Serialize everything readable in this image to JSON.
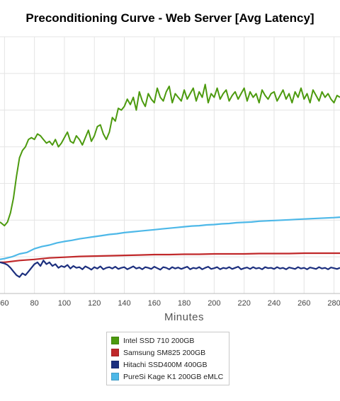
{
  "chart_data": {
    "type": "line",
    "title": "Preconditioning Curve - Web Server [Avg Latency]",
    "xlabel": "Minutes",
    "ylabel": "",
    "x_ticks": [
      60,
      80,
      100,
      120,
      140,
      160,
      180,
      200,
      220,
      240,
      260,
      280
    ],
    "xlim": [
      57,
      284
    ],
    "ylim": [
      0,
      7
    ],
    "grid": true,
    "legend_position": "bottom",
    "series": [
      {
        "name": "Intel SSD 710 200GB",
        "color": "#4c9a0e",
        "x": [
          57,
          60,
          62,
          64,
          66,
          68,
          70,
          72,
          74,
          76,
          78,
          80,
          82,
          84,
          86,
          88,
          90,
          92,
          94,
          96,
          98,
          100,
          102,
          104,
          106,
          108,
          110,
          112,
          114,
          116,
          118,
          120,
          122,
          124,
          126,
          128,
          130,
          132,
          134,
          136,
          138,
          140,
          142,
          144,
          146,
          148,
          150,
          152,
          154,
          156,
          158,
          160,
          162,
          164,
          166,
          168,
          170,
          172,
          174,
          176,
          178,
          180,
          182,
          184,
          186,
          188,
          190,
          192,
          194,
          196,
          198,
          200,
          202,
          204,
          206,
          208,
          210,
          212,
          214,
          216,
          218,
          220,
          222,
          224,
          226,
          228,
          230,
          232,
          234,
          236,
          238,
          240,
          242,
          244,
          246,
          248,
          250,
          252,
          254,
          256,
          258,
          260,
          262,
          264,
          266,
          268,
          270,
          272,
          274,
          276,
          278,
          280,
          282,
          284
        ],
        "values": [
          1.95,
          1.85,
          1.95,
          2.2,
          2.6,
          3.2,
          3.7,
          3.9,
          4.0,
          4.2,
          4.25,
          4.2,
          4.35,
          4.3,
          4.2,
          4.1,
          4.15,
          4.05,
          4.2,
          4.0,
          4.1,
          4.25,
          4.4,
          4.15,
          4.1,
          4.3,
          4.2,
          4.05,
          4.25,
          4.45,
          4.15,
          4.3,
          4.55,
          4.6,
          4.35,
          4.2,
          4.4,
          4.8,
          4.7,
          5.05,
          5.0,
          5.1,
          5.3,
          5.15,
          5.35,
          5.0,
          5.5,
          5.25,
          5.1,
          5.45,
          5.3,
          5.2,
          5.6,
          5.35,
          5.25,
          5.5,
          5.65,
          5.2,
          5.45,
          5.35,
          5.25,
          5.55,
          5.3,
          5.45,
          5.6,
          5.25,
          5.5,
          5.35,
          5.7,
          5.2,
          5.45,
          5.35,
          5.6,
          5.3,
          5.45,
          5.55,
          5.25,
          5.4,
          5.5,
          5.3,
          5.45,
          5.6,
          5.25,
          5.5,
          5.35,
          5.45,
          5.2,
          5.55,
          5.4,
          5.3,
          5.45,
          5.5,
          5.25,
          5.4,
          5.55,
          5.3,
          5.45,
          5.2,
          5.5,
          5.35,
          5.6,
          5.3,
          5.45,
          5.2,
          5.55,
          5.4,
          5.25,
          5.5,
          5.35,
          5.45,
          5.3,
          5.2,
          5.4,
          5.35
        ]
      },
      {
        "name": "Samsung SM825 200GB",
        "color": "#c0282a",
        "x": [
          57,
          60,
          70,
          80,
          90,
          100,
          110,
          120,
          130,
          140,
          150,
          160,
          170,
          180,
          190,
          200,
          210,
          220,
          230,
          240,
          250,
          260,
          270,
          284
        ],
        "values": [
          0.85,
          0.85,
          0.9,
          0.93,
          0.97,
          0.99,
          1.01,
          1.02,
          1.03,
          1.04,
          1.05,
          1.06,
          1.06,
          1.07,
          1.07,
          1.08,
          1.08,
          1.08,
          1.09,
          1.09,
          1.09,
          1.1,
          1.1,
          1.1
        ]
      },
      {
        "name": "Hitachi SSD400M 400GB",
        "color": "#1c2f7e",
        "x": [
          57,
          60,
          62,
          64,
          66,
          68,
          70,
          72,
          74,
          76,
          78,
          80,
          82,
          84,
          86,
          88,
          90,
          92,
          94,
          96,
          98,
          100,
          102,
          104,
          106,
          108,
          110,
          112,
          114,
          116,
          118,
          120,
          122,
          124,
          126,
          128,
          130,
          132,
          134,
          136,
          138,
          140,
          142,
          144,
          146,
          148,
          150,
          152,
          154,
          156,
          158,
          160,
          162,
          164,
          166,
          168,
          170,
          172,
          174,
          176,
          178,
          180,
          182,
          184,
          186,
          188,
          190,
          192,
          194,
          196,
          198,
          200,
          202,
          204,
          206,
          208,
          210,
          212,
          214,
          216,
          218,
          220,
          222,
          224,
          226,
          228,
          230,
          232,
          234,
          236,
          238,
          240,
          242,
          244,
          246,
          248,
          250,
          252,
          254,
          256,
          258,
          260,
          262,
          264,
          266,
          268,
          270,
          272,
          274,
          276,
          278,
          280,
          282,
          284
        ],
        "values": [
          0.85,
          0.82,
          0.78,
          0.7,
          0.6,
          0.5,
          0.45,
          0.55,
          0.5,
          0.6,
          0.7,
          0.8,
          0.85,
          0.75,
          0.9,
          0.8,
          0.85,
          0.75,
          0.8,
          0.7,
          0.75,
          0.72,
          0.78,
          0.68,
          0.75,
          0.7,
          0.72,
          0.66,
          0.74,
          0.7,
          0.65,
          0.72,
          0.68,
          0.74,
          0.66,
          0.7,
          0.72,
          0.68,
          0.73,
          0.67,
          0.7,
          0.72,
          0.66,
          0.7,
          0.74,
          0.68,
          0.71,
          0.66,
          0.72,
          0.7,
          0.67,
          0.73,
          0.69,
          0.65,
          0.72,
          0.7,
          0.66,
          0.72,
          0.68,
          0.71,
          0.67,
          0.7,
          0.73,
          0.66,
          0.7,
          0.68,
          0.72,
          0.66,
          0.7,
          0.73,
          0.67,
          0.69,
          0.72,
          0.66,
          0.7,
          0.68,
          0.72,
          0.67,
          0.7,
          0.73,
          0.66,
          0.69,
          0.71,
          0.67,
          0.72,
          0.68,
          0.7,
          0.66,
          0.72,
          0.69,
          0.7,
          0.67,
          0.72,
          0.68,
          0.7,
          0.66,
          0.71,
          0.69,
          0.67,
          0.72,
          0.68,
          0.7,
          0.66,
          0.71,
          0.69,
          0.67,
          0.72,
          0.68,
          0.7,
          0.66,
          0.71,
          0.69,
          0.67,
          0.7
        ]
      },
      {
        "name": "PureSi Kage K1 200GB eMLC",
        "color": "#4db8e8",
        "x": [
          57,
          60,
          65,
          70,
          75,
          80,
          85,
          90,
          95,
          100,
          105,
          110,
          115,
          120,
          125,
          130,
          135,
          140,
          145,
          150,
          155,
          160,
          165,
          170,
          175,
          180,
          185,
          190,
          195,
          200,
          205,
          210,
          215,
          220,
          225,
          230,
          235,
          240,
          245,
          250,
          255,
          260,
          265,
          270,
          275,
          280,
          284
        ],
        "values": [
          0.93,
          0.95,
          1.0,
          1.08,
          1.12,
          1.22,
          1.28,
          1.32,
          1.38,
          1.42,
          1.45,
          1.49,
          1.52,
          1.55,
          1.58,
          1.61,
          1.63,
          1.66,
          1.68,
          1.7,
          1.72,
          1.74,
          1.76,
          1.78,
          1.8,
          1.82,
          1.84,
          1.85,
          1.87,
          1.88,
          1.9,
          1.91,
          1.93,
          1.94,
          1.95,
          1.97,
          1.98,
          1.99,
          2.0,
          2.01,
          2.02,
          2.03,
          2.04,
          2.05,
          2.06,
          2.07,
          2.08
        ]
      }
    ]
  }
}
